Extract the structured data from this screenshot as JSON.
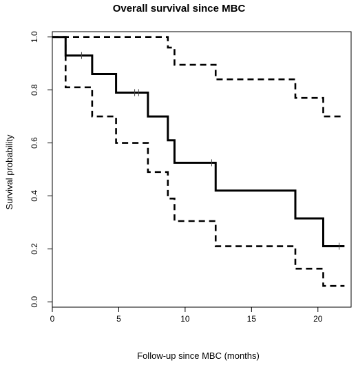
{
  "chart_data": {
    "type": "line",
    "title": "Overall survival since MBC",
    "xlabel": "Follow-up since MBC (months)",
    "ylabel": "Survival probability",
    "xlim": [
      0,
      22.5
    ],
    "ylim": [
      -0.02,
      1.02
    ],
    "x_ticks": [
      0,
      5,
      10,
      15,
      20
    ],
    "y_ticks": [
      0.0,
      0.2,
      0.4,
      0.6,
      0.8,
      1.0
    ],
    "y_tick_labels": [
      "0.0",
      "0.2",
      "0.4",
      "0.6",
      "0.8",
      "1.0"
    ],
    "grid": false,
    "series": [
      {
        "style": "solid",
        "steps": [
          [
            0,
            1.0
          ],
          [
            1.0,
            0.93
          ],
          [
            3.0,
            0.86
          ],
          [
            4.8,
            0.79
          ],
          [
            7.2,
            0.7
          ],
          [
            8.7,
            0.61
          ],
          [
            9.2,
            0.525
          ],
          [
            12.3,
            0.42
          ],
          [
            18.3,
            0.315
          ],
          [
            20.4,
            0.21
          ],
          [
            22.0,
            0.21
          ]
        ],
        "censor_marks": [
          [
            2.2,
            0.93
          ],
          [
            6.2,
            0.79
          ],
          [
            6.5,
            0.79
          ],
          [
            12.0,
            0.525
          ],
          [
            21.6,
            0.21
          ]
        ]
      },
      {
        "style": "dashed",
        "steps": [
          [
            0,
            1.0
          ],
          [
            8.7,
            0.96
          ],
          [
            9.2,
            0.895
          ],
          [
            12.3,
            0.84
          ],
          [
            18.3,
            0.77
          ],
          [
            20.4,
            0.7
          ],
          [
            22.0,
            0.7
          ]
        ]
      },
      {
        "style": "dashed",
        "steps": [
          [
            0,
            1.0
          ],
          [
            1.0,
            0.81
          ],
          [
            3.0,
            0.7
          ],
          [
            4.8,
            0.6
          ],
          [
            7.2,
            0.49
          ],
          [
            8.7,
            0.39
          ],
          [
            9.2,
            0.305
          ],
          [
            12.3,
            0.21
          ],
          [
            18.3,
            0.125
          ],
          [
            20.4,
            0.06
          ],
          [
            22.0,
            0.06
          ]
        ]
      }
    ]
  }
}
